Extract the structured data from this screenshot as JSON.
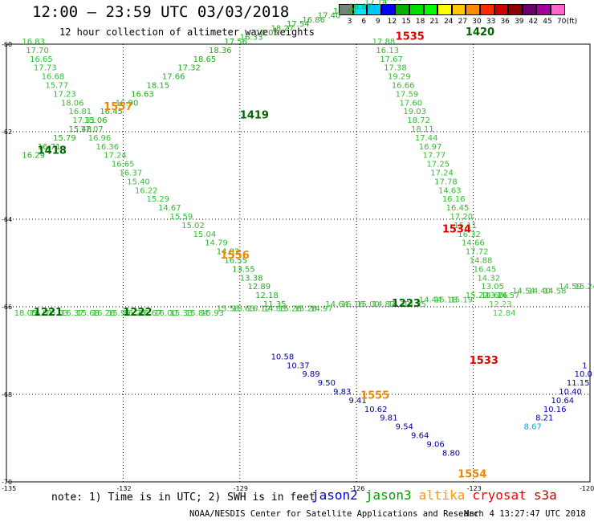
{
  "header": {
    "title": "12:00 — 23:59 UTC 03/03/2018",
    "subtitle": "12 hour collection of altimeter wave heights"
  },
  "colorbar": {
    "values": [
      "3",
      "6",
      "9",
      "12",
      "15",
      "18",
      "21",
      "24",
      "27",
      "30",
      "33",
      "36",
      "39",
      "42",
      "45",
      "70",
      "(ft)"
    ],
    "colors": [
      "#808080",
      "#00e5ff",
      "#00c8ff",
      "#0000ff",
      "#00b000",
      "#00dd00",
      "#00ff00",
      "#ffff00",
      "#ffc800",
      "#ff8c00",
      "#ff2a00",
      "#cc0000",
      "#8b0000",
      "#6b006b",
      "#a000a0",
      "#ff66cc",
      "#000000"
    ]
  },
  "axes": {
    "lat_labels": [
      "-60",
      "-62",
      "-64",
      "-66",
      "-68",
      "-70"
    ],
    "lon_labels": [
      "-135",
      "-132",
      "-129",
      "-126",
      "-123",
      "-120"
    ]
  },
  "footer": {
    "note": "note: 1) Time is in UTC; 2) SWH is in feet",
    "legend": [
      {
        "name": "jason2",
        "color": "#0000cc"
      },
      {
        "name": "jason3",
        "color": "#00a000"
      },
      {
        "name": "altika",
        "color": "#ff9900"
      },
      {
        "name": "cryosat",
        "color": "#ff0000"
      },
      {
        "name": "s3a",
        "color": "#cc0000"
      }
    ],
    "credit": "NOAA/NESDIS Center for Satellite Applications and Research",
    "timestamp": "Mar  4 13:27:47 UTC 2018"
  },
  "tracks": [
    {
      "id": "track-a",
      "color": "#33bb33",
      "lon": [
        -134.6,
        -134.5,
        -134.4,
        -134.3,
        -134.1,
        -134.0,
        -133.8,
        -133.6,
        -133.4,
        -133.3,
        -133.1,
        -132.9,
        -132.7,
        -132.5,
        -132.3,
        -132.1,
        -131.9,
        -131.7,
        -131.4,
        -131.1,
        -130.8,
        -130.5,
        -130.2,
        -129.9
      ],
      "lat": [
        -60.0,
        -60.2,
        -60.4,
        -60.6,
        -60.8,
        -61.0,
        -61.2,
        -61.4,
        -61.6,
        -61.8,
        -62.0,
        -62.2,
        -62.4,
        -62.6,
        -62.8,
        -63.0,
        -63.2,
        -63.4,
        -63.6,
        -63.8,
        -64.0,
        -64.2,
        -64.4,
        -64.6
      ],
      "values": [
        "16.83",
        "17.70",
        "16.65",
        "17.73",
        "16.68",
        "15.77",
        "17.23",
        "18.06",
        "16.81",
        "17.31",
        "17.07",
        "16.96",
        "16.36",
        "17.24",
        "16.65",
        "16.37",
        "15.40",
        "16.22",
        "15.29",
        "14.67",
        "15.59",
        "15.02",
        "15.04",
        "14.79"
      ]
    },
    {
      "id": "track-b",
      "color": "#22aa22",
      "lon": [
        -129.6,
        -129.4,
        -129.2,
        -129.0,
        -128.8,
        -128.6,
        -128.4
      ],
      "lat": [
        -64.8,
        -65.0,
        -65.2,
        -65.4,
        -65.6,
        -65.8,
        -66.0
      ],
      "values": [
        "14.83",
        "16.55",
        "13.55",
        "13.38",
        "12.89",
        "12.18",
        "11.35"
      ]
    },
    {
      "id": "track-c",
      "color": "#000099",
      "lon": [
        -128.2,
        -127.8,
        -127.4,
        -127.0,
        -126.6,
        -126.2,
        -125.8,
        -125.4,
        -125.0,
        -124.6,
        -124.2,
        -123.8
      ],
      "lat": [
        -67.2,
        -67.4,
        -67.6,
        -67.8,
        -68.0,
        -68.2,
        -68.4,
        -68.6,
        -68.8,
        -69.0,
        -69.2,
        -69.4
      ],
      "values": [
        "10.58",
        "10.37",
        "9.89",
        "9.50",
        "9.83",
        "9.41",
        "10.62",
        "9.81",
        "9.54",
        "9.64",
        "9.06",
        "8.80"
      ]
    },
    {
      "id": "track-d",
      "color": "#33bb33",
      "lon": [
        -125.6,
        -125.5,
        -125.4,
        -125.3,
        -125.2,
        -125.1,
        -125.0,
        -124.9,
        -124.8,
        -124.7,
        -124.6,
        -124.5,
        -124.4,
        -124.3,
        -124.2,
        -124.1,
        -124.0,
        -123.9,
        -123.8,
        -123.7,
        -123.6,
        -123.5,
        -123.4,
        -123.3,
        -123.2,
        -123.1,
        -123.0,
        -122.9,
        -122.8,
        -122.7
      ],
      "lat": [
        -60.0,
        -60.2,
        -60.4,
        -60.6,
        -60.8,
        -61.0,
        -61.2,
        -61.4,
        -61.6,
        -61.8,
        -62.0,
        -62.2,
        -62.4,
        -62.6,
        -62.8,
        -63.0,
        -63.2,
        -63.4,
        -63.6,
        -63.8,
        -64.0,
        -64.2,
        -64.4,
        -64.6,
        -64.8,
        -65.0,
        -65.2,
        -65.4,
        -65.6,
        -65.8
      ],
      "values": [
        "17.88",
        "16.13",
        "17.67",
        "17.38",
        "19.29",
        "16.66",
        "17.59",
        "17.60",
        "19.03",
        "18.72",
        "18.11",
        "17.44",
        "16.97",
        "17.77",
        "17.25",
        "17.24",
        "17.78",
        "14.63",
        "16.16",
        "16.45",
        "17.20",
        "15.11",
        "16.32",
        "14.66",
        "17.72",
        "14.88",
        "16.45",
        "14.32",
        "13.05",
        "13.26"
      ]
    },
    {
      "id": "track-e",
      "color": "#44cc44",
      "lon": [
        -122.6,
        -122.5
      ],
      "lat": [
        -66.0,
        -66.2
      ],
      "values": [
        "12.23",
        "12.84"
      ]
    },
    {
      "id": "track-f",
      "color": "#0000aa",
      "lon": [
        -120.2,
        -120.4,
        -120.6,
        -120.8,
        -121.0,
        -121.2,
        -121.4
      ],
      "lat": [
        -67.4,
        -67.6,
        -67.8,
        -68.0,
        -68.2,
        -68.4,
        -68.6
      ],
      "values": [
        "1",
        "10.0",
        "11.15",
        "10.40",
        "10.64",
        "10.16",
        "8.21"
      ]
    },
    {
      "id": "track-g",
      "color": "#00aadd",
      "lon": [
        -121.7
      ],
      "lat": [
        -68.8
      ],
      "values": [
        "8.67"
      ]
    },
    {
      "id": "track-h",
      "color": "#22aa22",
      "lon": [
        -134.6,
        -134.2,
        -133.8,
        -133.4,
        -133.0,
        -132.6,
        -132.2,
        -131.8,
        -131.4,
        -131.0,
        -130.6,
        -130.2,
        -129.8,
        -129.4,
        -129.0,
        -128.6,
        -128.2,
        -127.8,
        -127.4,
        -127.0,
        -126.6,
        -126.2,
        -125.8,
        -125.4,
        -125.0,
        -124.6
      ],
      "lat": [
        -62.6,
        -62.4,
        -62.2,
        -62.0,
        -61.8,
        -61.6,
        -61.4,
        -61.2,
        -61.0,
        -60.8,
        -60.6,
        -60.4,
        -60.2,
        -60.0,
        -59.9,
        -59.8,
        -59.7,
        -59.6,
        -59.5,
        -59.4,
        -59.3,
        -59.2,
        -59.1,
        -59.0,
        -58.9,
        -58.8
      ],
      "values": [
        "16.29",
        "16.71",
        "15.79",
        "15.48",
        "15.06",
        "16.45",
        "16.90",
        "16.63",
        "18.15",
        "17.66",
        "17.32",
        "18.65",
        "18.36",
        "17.56",
        "16.33",
        "18.05",
        "18.27",
        "17.54",
        "16.86",
        "17.40",
        "17.45",
        "16.87",
        "17.14",
        "16.53",
        "15.46",
        "17.11"
      ]
    },
    {
      "id": "track-i",
      "color": "#33bb33",
      "lon": [
        -134.8,
        -134.4,
        -134.0,
        -133.6,
        -133.2,
        -132.8,
        -132.4,
        -132.0,
        -131.6,
        -131.2,
        -130.8,
        -130.4,
        -130.0,
        -129.6,
        -129.2,
        -128.8,
        -128.4,
        -128.0,
        -127.6,
        -127.2,
        -126.8,
        -126.4,
        -126.0,
        -125.6,
        -125.2,
        -124.8,
        -124.4,
        -124.0,
        -123.6,
        -123.2,
        -122.8,
        -122.4,
        -122.0,
        -121.6,
        -121.2,
        -120.8,
        -120.4
      ],
      "lat": [
        -66.2,
        -66.2,
        -66.2,
        -66.2,
        -66.2,
        -66.2,
        -66.2,
        -66.2,
        -66.2,
        -66.2,
        -66.2,
        -66.2,
        -66.2,
        -66.1,
        -66.1,
        -66.1,
        -66.1,
        -66.1,
        -66.1,
        -66.1,
        -66.0,
        -66.0,
        -66.0,
        -66.0,
        -66.0,
        -66.0,
        -65.9,
        -65.9,
        -65.9,
        -65.8,
        -65.8,
        -65.8,
        -65.7,
        -65.7,
        -65.7,
        -65.6,
        -65.6
      ],
      "values": [
        "18.05",
        "16.81",
        "16.03",
        "16.37",
        "15.68",
        "16.26",
        "15.95",
        "16.28",
        "16.67",
        "16.00",
        "15.33",
        "15.84",
        "15.93",
        "15.58",
        "15.63",
        "16.12",
        "14.83",
        "15.26",
        "15.28",
        "14.97",
        "14.64",
        "16.16",
        "15.00",
        "14.87",
        "14.72",
        "14.35",
        "14.44",
        "15.18",
        "15.19",
        "15.22",
        "14.60",
        "14.57",
        "14.54",
        "14.40",
        "14.58",
        "14.59",
        "15.24"
      ]
    }
  ],
  "pass_labels": [
    {
      "text": "1418",
      "lon": -134.2,
      "lat": -62.5,
      "color": "#006600"
    },
    {
      "text": "1419",
      "lon": -129.0,
      "lat": -61.7,
      "color": "#006600"
    },
    {
      "text": "1420",
      "lon": -123.2,
      "lat": -59.8,
      "color": "#006600"
    },
    {
      "text": "1221",
      "lon": -134.3,
      "lat": -66.2,
      "color": "#006600"
    },
    {
      "text": "1222",
      "lon": -132.0,
      "lat": -66.2,
      "color": "#006600"
    },
    {
      "text": "1223",
      "lon": -125.1,
      "lat": -66.0,
      "color": "#006600"
    },
    {
      "text": "1557",
      "lon": -132.5,
      "lat": -61.5,
      "color": "#ee8800"
    },
    {
      "text": "1556",
      "lon": -129.5,
      "lat": -64.9,
      "color": "#ee8800"
    },
    {
      "text": "1555",
      "lon": -125.9,
      "lat": -68.1,
      "color": "#ee8800"
    },
    {
      "text": "1554",
      "lon": -123.4,
      "lat": -69.9,
      "color": "#ee8800"
    },
    {
      "text": "1535",
      "lon": -125.0,
      "lat": -59.9,
      "color": "#dd0000"
    },
    {
      "text": "1534",
      "lon": -123.8,
      "lat": -64.3,
      "color": "#dd0000"
    },
    {
      "text": "1533",
      "lon": -123.1,
      "lat": -67.3,
      "color": "#dd0000"
    }
  ]
}
